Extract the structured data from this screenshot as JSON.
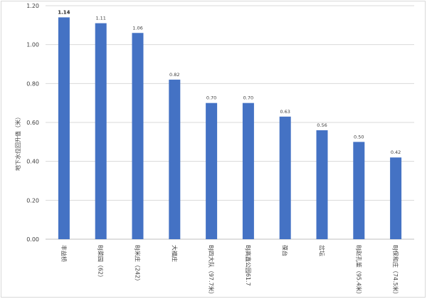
{
  "chart_data": {
    "type": "bar",
    "title": "",
    "xlabel": "",
    "ylabel": "地下水位回升值（米）",
    "ylim": [
      0,
      1.2
    ],
    "yticks": [
      "0.00",
      "0.20",
      "0.40",
      "0.60",
      "0.80",
      "1.00",
      "1.20"
    ],
    "grid": true,
    "legend": "none",
    "color": "#4472C4",
    "categories": [
      "丰益桥",
      "BJ菜园（62）",
      "BJ米庄（242）",
      "大福庄",
      "BJ四大队（97.7米）",
      "BJ高鑫公园61.7",
      "葆台",
      "岔坛",
      "BJ赵孔鉴（95.4米）",
      "BJ保和庄（74.5米）"
    ],
    "values": [
      1.14,
      1.11,
      1.06,
      0.82,
      0.7,
      0.7,
      0.63,
      0.56,
      0.5,
      0.42
    ],
    "value_labels": [
      "1.14",
      "1.11",
      "1.06",
      "0.82",
      "0.70",
      "0.70",
      "0.63",
      "0.56",
      "0.50",
      "0.42"
    ]
  }
}
